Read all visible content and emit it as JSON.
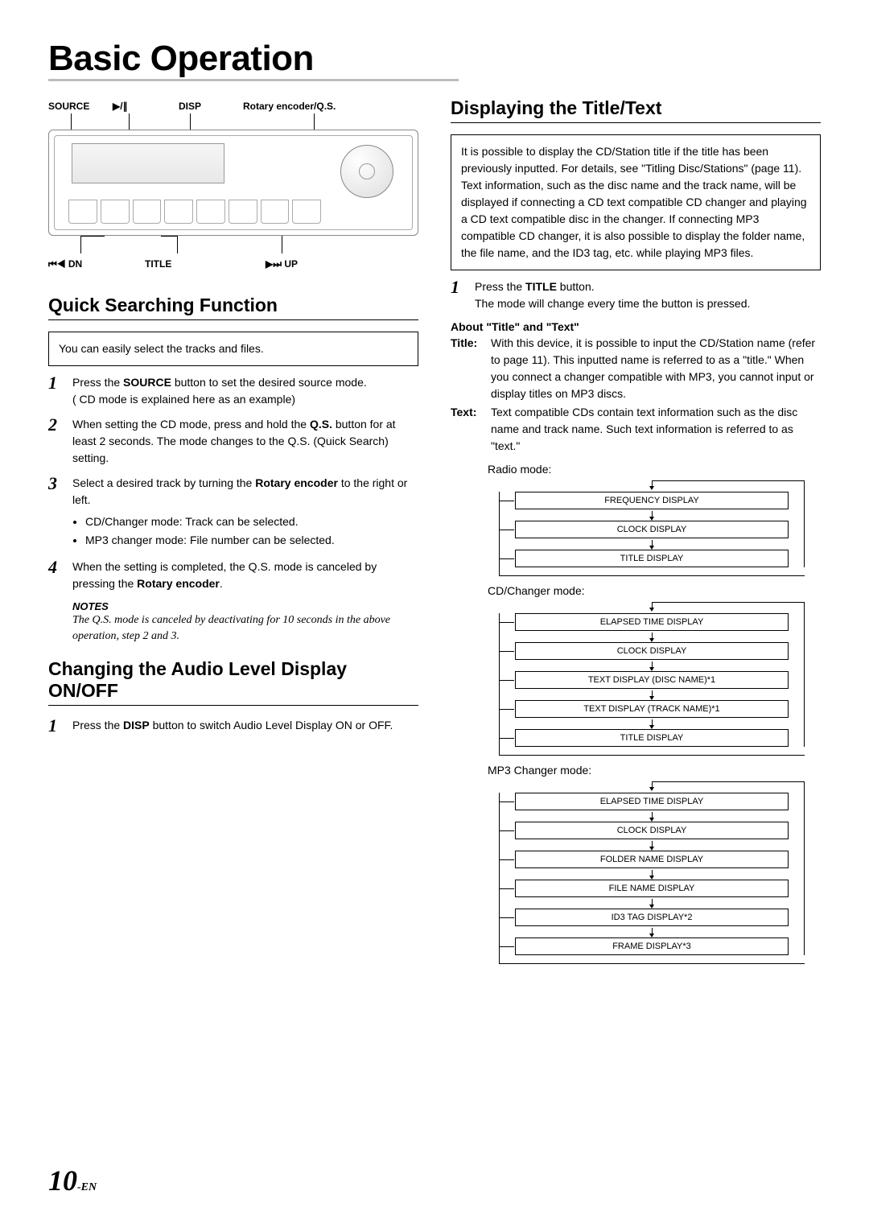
{
  "page_title": "Basic Operation",
  "footer": {
    "num": "10",
    "suffix": "-EN"
  },
  "device": {
    "labels_top": [
      "SOURCE",
      "▶/∥",
      "DISP",
      "Rotary encoder/Q.S."
    ],
    "labels_bottom": [
      "⏮◀ DN",
      "TITLE",
      "▶⏭ UP"
    ]
  },
  "quick_search": {
    "heading": "Quick Searching Function",
    "intro": "You can easily select the tracks and files.",
    "steps": [
      {
        "n": "1",
        "html": "Press the <b>SOURCE</b> button to set the desired source mode.<br>( CD mode is explained here as an example)"
      },
      {
        "n": "2",
        "html": "When setting the CD mode, press and hold the <b>Q.S.</b> button for at least 2 seconds. The mode changes to the Q.S. (Quick Search) setting."
      },
      {
        "n": "3",
        "html": "Select a desired track by turning the <b>Rotary encoder</b> to the right or left.<ul><li>CD/Changer mode: Track can be selected.</li><li>MP3 changer mode: File number can be selected.</li></ul>"
      },
      {
        "n": "4",
        "html": "When the setting is completed, the Q.S. mode is canceled by pressing the <b>Rotary encoder</b>."
      }
    ],
    "notes_head": "NOTES",
    "notes_body": "The Q.S. mode is canceled by deactivating for 10 seconds in the above operation, step 2 and 3."
  },
  "audio_level": {
    "heading": "Changing the Audio Level Display ON/OFF",
    "steps": [
      {
        "n": "1",
        "html": "Press the <b>DISP</b> button to switch Audio Level Display ON or OFF."
      }
    ]
  },
  "title_text": {
    "heading": "Displaying the Title/Text",
    "intro": "It is possible to display the CD/Station title if the title has been previously inputted. For details, see \"Titling Disc/Stations\" (page 11). Text information, such as the disc name and the track name, will be displayed if connecting a CD text compatible CD changer and playing a CD text compatible disc in the changer. If connecting MP3 compatible CD changer, it is also possible to display the folder name, the file name, and the ID3 tag, etc. while playing MP3 files.",
    "steps": [
      {
        "n": "1",
        "html": "Press the <b>TITLE</b> button.<br>The mode will change every time the button is pressed."
      }
    ],
    "about_head": "About \"Title\" and \"Text\"",
    "defs": [
      {
        "label": "Title:",
        "body": "With this device, it is possible to input the CD/Station name (refer to page 11). This inputted name is referred to as a \"title.\" When you connect a changer compatible with MP3, you cannot input or display titles on MP3 discs."
      },
      {
        "label": "Text:",
        "body": "Text compatible CDs contain text information such as the disc name and track name. Such text information is referred to as \"text.\""
      }
    ],
    "modes": [
      {
        "label": "Radio mode:",
        "items": [
          "FREQUENCY DISPLAY",
          "CLOCK DISPLAY",
          "TITLE DISPLAY"
        ]
      },
      {
        "label": "CD/Changer mode:",
        "items": [
          "ELAPSED TIME DISPLAY",
          "CLOCK DISPLAY",
          "TEXT DISPLAY (DISC NAME)*1",
          "TEXT DISPLAY (TRACK NAME)*1",
          "TITLE DISPLAY"
        ]
      },
      {
        "label": "MP3 Changer mode:",
        "items": [
          "ELAPSED TIME DISPLAY",
          "CLOCK DISPLAY",
          "FOLDER NAME DISPLAY",
          "FILE NAME DISPLAY",
          "ID3 TAG DISPLAY*2",
          "FRAME DISPLAY*3"
        ]
      }
    ]
  },
  "style": {
    "font_body": 14,
    "font_heading": 23,
    "font_title": 44,
    "font_flow": 11,
    "colors": {
      "text": "#000000",
      "rule": "#bdbdbd",
      "device_line": "#888888"
    }
  }
}
